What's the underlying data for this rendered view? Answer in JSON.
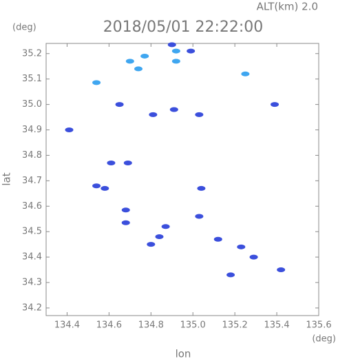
{
  "header": {
    "altitude": "ALT(km) 2.0",
    "time": "2018/05/01 22:22:00"
  },
  "chart_data": {
    "type": "scatter",
    "x_label": "lon",
    "y_label": "lat",
    "x_unit": "(deg)",
    "y_unit": "(deg)",
    "xlim": [
      134.3,
      135.6
    ],
    "ylim": [
      34.17,
      35.24
    ],
    "xticks": [
      134.4,
      134.6,
      134.8,
      {
        "value": 135,
        "label": "135.0"
      },
      135.2,
      135.4,
      135.6
    ],
    "yticks": [
      34.2,
      34.3,
      34.4,
      34.5,
      34.6,
      34.7,
      34.8,
      34.9,
      {
        "value": 35,
        "label": "35.0"
      },
      35.1,
      35.2
    ],
    "series": [
      {
        "color": "#3fa6f0",
        "x": [
          134.54,
          134.7,
          134.74,
          134.77,
          134.92,
          134.92,
          135.25
        ],
        "values": [
          35.086,
          35.17,
          35.14,
          35.19,
          35.21,
          35.17,
          35.12
        ]
      },
      {
        "color": "#3b4fdc",
        "x": [
          134.9,
          134.99,
          134.65,
          134.81,
          134.91,
          135.03,
          135.39,
          134.41,
          134.61,
          134.69,
          134.54,
          134.58,
          135.04,
          134.68,
          134.68,
          134.87,
          134.84,
          134.8,
          135.03,
          135.12,
          135.23,
          135.29,
          135.18,
          135.42
        ],
        "values": [
          35.235,
          35.21,
          35.0,
          34.96,
          34.98,
          34.96,
          35.0,
          34.9,
          34.77,
          34.77,
          34.68,
          34.67,
          34.67,
          34.585,
          34.535,
          34.52,
          34.48,
          34.45,
          34.56,
          34.47,
          34.44,
          34.4,
          34.33,
          34.35
        ]
      }
    ]
  }
}
